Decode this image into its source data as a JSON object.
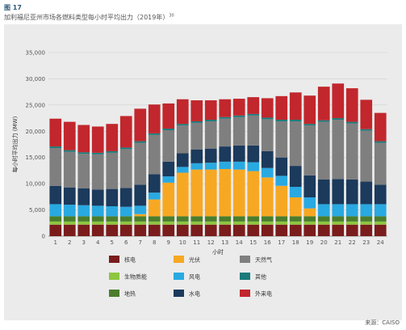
{
  "figure": {
    "label": "图 17",
    "title": "加利福尼亚州市场各燃料类型每小时平均出力（2019年）",
    "footnote_ref": "30",
    "source": "来源：CAISO"
  },
  "chart_data": {
    "type": "bar",
    "stacked": true,
    "xlabel": "小时",
    "ylabel": "每小时平均出力 (MW)",
    "ylim": [
      0,
      35000
    ],
    "yticks": [
      0,
      5000,
      10000,
      15000,
      20000,
      25000,
      30000,
      35000
    ],
    "ytick_labels": [
      "0",
      "5,000",
      "10,000",
      "15,000",
      "20,000",
      "25,000",
      "30,000",
      "35,000"
    ],
    "grid": true,
    "legend_position": "bottom",
    "categories": [
      "1",
      "2",
      "3",
      "4",
      "5",
      "6",
      "7",
      "8",
      "9",
      "10",
      "11",
      "12",
      "13",
      "14",
      "15",
      "16",
      "17",
      "18",
      "19",
      "20",
      "21",
      "22",
      "23",
      "24"
    ],
    "series": [
      {
        "name": "核电",
        "color": "#7a1c1c",
        "values": [
          2200,
          2200,
          2200,
          2200,
          2200,
          2200,
          2200,
          2200,
          2200,
          2200,
          2200,
          2200,
          2200,
          2200,
          2200,
          2200,
          2200,
          2200,
          2200,
          2200,
          2200,
          2200,
          2200,
          2200
        ]
      },
      {
        "name": "生物质能",
        "color": "#8dc63f",
        "values": [
          600,
          600,
          600,
          600,
          600,
          600,
          600,
          600,
          600,
          600,
          600,
          600,
          600,
          600,
          600,
          600,
          600,
          600,
          600,
          600,
          600,
          600,
          600,
          600
        ]
      },
      {
        "name": "地热",
        "color": "#4a7d2c",
        "values": [
          1000,
          1000,
          1000,
          1000,
          1000,
          1000,
          1000,
          1000,
          1000,
          1000,
          1000,
          1000,
          1000,
          1000,
          1000,
          1000,
          1000,
          1000,
          1000,
          1000,
          1000,
          1000,
          1000,
          1000
        ]
      },
      {
        "name": "光伏",
        "color": "#f7a823",
        "values": [
          0,
          0,
          0,
          0,
          0,
          0,
          400,
          3200,
          6400,
          8300,
          8900,
          8900,
          9000,
          8900,
          8600,
          7400,
          5800,
          3600,
          1500,
          0,
          0,
          0,
          0,
          0
        ]
      },
      {
        "name": "风电",
        "color": "#29a9e1",
        "values": [
          2300,
          2200,
          2100,
          2000,
          1900,
          1800,
          1600,
          1300,
          1200,
          1100,
          1200,
          1300,
          1400,
          1500,
          1700,
          1800,
          1900,
          2000,
          2100,
          2300,
          2300,
          2300,
          2300,
          2300
        ]
      },
      {
        "name": "水电",
        "color": "#1b3a5c",
        "values": [
          3500,
          3300,
          3200,
          3100,
          3300,
          3600,
          4000,
          3500,
          2800,
          2600,
          2600,
          2700,
          2900,
          3100,
          3200,
          3200,
          3500,
          4000,
          4200,
          4700,
          4800,
          4700,
          4300,
          3700
        ]
      },
      {
        "name": "天然气",
        "color": "#7f7f7f",
        "values": [
          7200,
          6800,
          6600,
          6700,
          6900,
          7400,
          8000,
          7500,
          6000,
          5300,
          5100,
          5200,
          5300,
          5400,
          5700,
          6100,
          6900,
          8500,
          9500,
          11000,
          11300,
          10700,
          9700,
          8000
        ]
      },
      {
        "name": "其他",
        "color": "#1b7a7a",
        "values": [
          300,
          300,
          300,
          300,
          300,
          300,
          300,
          300,
          300,
          300,
          300,
          300,
          300,
          300,
          300,
          300,
          300,
          300,
          300,
          300,
          300,
          300,
          300,
          300
        ]
      },
      {
        "name": "外来电",
        "color": "#c1272d",
        "values": [
          5300,
          5400,
          5200,
          5000,
          5200,
          6000,
          6200,
          5500,
          4800,
          4700,
          4000,
          3700,
          3400,
          3200,
          3200,
          3700,
          4500,
          5200,
          5400,
          6400,
          6600,
          6400,
          5600,
          5400
        ]
      }
    ],
    "legend_order": [
      "核电",
      "光伏",
      "天然气",
      "生物质能",
      "风电",
      "其他",
      "地热",
      "水电",
      "外来电"
    ]
  }
}
